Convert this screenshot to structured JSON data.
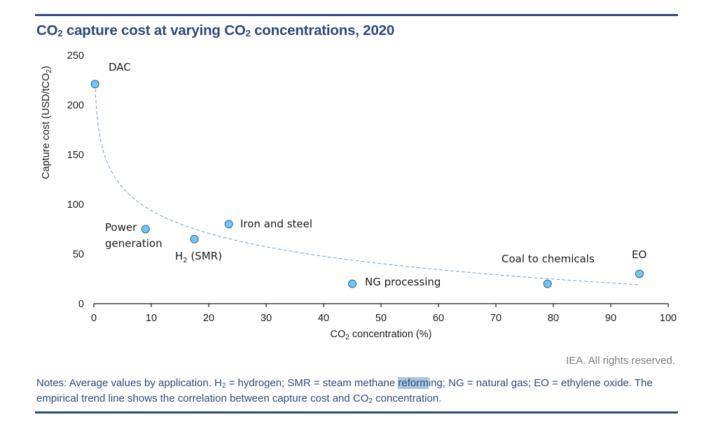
{
  "title": {
    "part1": "CO",
    "sub1": "2",
    "part2": " capture cost at varying CO",
    "sub2": "2",
    "part3": " concentrations, 2020"
  },
  "colors": {
    "brand": "#2b4a7c",
    "point_fill": "#6ec8f5",
    "point_stroke": "#3a5f8a",
    "trend": "#7fa3dc",
    "selection": "#aac7e0"
  },
  "chart_data": {
    "type": "scatter",
    "title": "CO2 capture cost at varying CO2 concentrations, 2020",
    "xlabel": "CO2 concentration (%)",
    "ylabel": "Capture cost (USD/tCO2)",
    "xlim": [
      0,
      100
    ],
    "ylim": [
      0,
      250
    ],
    "x_ticks": [
      0,
      10,
      20,
      30,
      40,
      50,
      60,
      70,
      80,
      90,
      100
    ],
    "y_ticks": [
      0,
      50,
      100,
      150,
      200,
      250
    ],
    "grid": false,
    "legend": "none",
    "points": [
      {
        "label": "DAC",
        "x": 0.2,
        "y": 221
      },
      {
        "label": "Power generation",
        "x": 9,
        "y": 75
      },
      {
        "label": "H2 (SMR)",
        "x": 17.5,
        "y": 65
      },
      {
        "label": "Iron and steel",
        "x": 23.5,
        "y": 80
      },
      {
        "label": "NG processing",
        "x": 45,
        "y": 20
      },
      {
        "label": "Coal to chemicals",
        "x": 79,
        "y": 20
      },
      {
        "label": "EO",
        "x": 95,
        "y": 30
      }
    ],
    "trendline": {
      "type": "logarithmic",
      "equation": "y = 170.2 - 33.2 ln(x)",
      "a": 170.2,
      "b": -33.2,
      "x_range": [
        0.25,
        95
      ],
      "style": "dashed"
    }
  },
  "labels": {
    "x_axis_title_main": "CO",
    "x_axis_title_sub": "2",
    "x_axis_title_rest": " concentration (%)",
    "y_axis_title_main": "Capture cost (USD/tCO",
    "y_axis_title_sub": "2",
    "y_axis_title_rest": ")",
    "point_dac": "DAC",
    "point_power_line1": "Power",
    "point_power_line2": "generation",
    "point_h2_main": "H",
    "point_h2_sub": "2",
    "point_h2_rest": " (SMR)",
    "point_iron": "Iron and steel",
    "point_ng": "NG processing",
    "point_coal": "Coal to chemicals",
    "point_eo": "EO"
  },
  "footer": {
    "rights": "IEA. All rights reserved.",
    "notes_a": "Notes: Average values by application. H",
    "notes_sub1": "2",
    "notes_b": " = hydrogen; SMR = steam methane ",
    "notes_selected": "reform",
    "notes_c": "ing; NG = natural gas; EO = ethylene oxide. The empirical trend line shows the correlation between capture cost and CO",
    "notes_sub2": "2",
    "notes_d": " concentration."
  }
}
